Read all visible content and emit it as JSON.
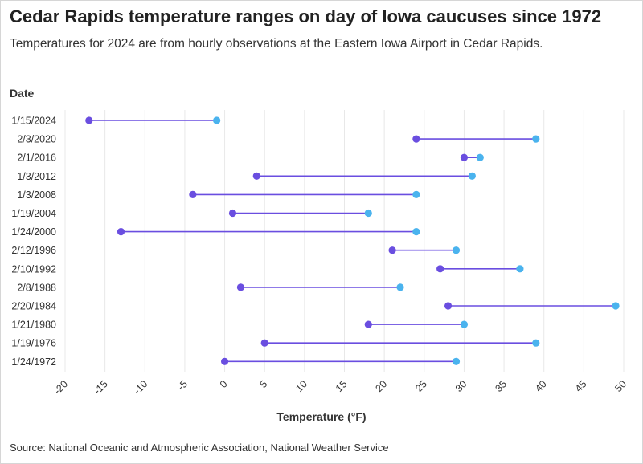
{
  "chart_data": {
    "type": "dumbbell",
    "title": "Cedar Rapids temperature ranges on day of Iowa caucuses since 1972",
    "subtitle": "Temperatures for 2024 are from hourly observations at the Eastern Iowa Airport in Cedar Rapids.",
    "ylabel": "Date",
    "xlabel": "Temperature (°F)",
    "source": "Source: National Oceanic and Atmospheric Association, National Weather Service",
    "xlim": [
      -20,
      50
    ],
    "xticks": [
      -20,
      -15,
      -10,
      -5,
      0,
      5,
      10,
      15,
      20,
      25,
      30,
      35,
      40,
      45,
      50
    ],
    "grid": "vertical",
    "series": [
      {
        "name": "",
        "color": "#6a4ee0"
      },
      {
        "name": "",
        "color": "#4ab3ee"
      }
    ],
    "line_color": "#6a4ee0",
    "rows": [
      {
        "date": "1/15/2024",
        "low": -17,
        "high": -1
      },
      {
        "date": "2/3/2020",
        "low": 24,
        "high": 39
      },
      {
        "date": "2/1/2016",
        "low": 30,
        "high": 32
      },
      {
        "date": "1/3/2012",
        "low": 4,
        "high": 31
      },
      {
        "date": "1/3/2008",
        "low": -4,
        "high": 24
      },
      {
        "date": "1/19/2004",
        "low": 1,
        "high": 18
      },
      {
        "date": "1/24/2000",
        "low": -13,
        "high": 24
      },
      {
        "date": "2/12/1996",
        "low": 21,
        "high": 29
      },
      {
        "date": "2/10/1992",
        "low": 27,
        "high": 37
      },
      {
        "date": "2/8/1988",
        "low": 2,
        "high": 22
      },
      {
        "date": "2/20/1984",
        "low": 28,
        "high": 49
      },
      {
        "date": "1/21/1980",
        "low": 18,
        "high": 30
      },
      {
        "date": "1/19/1976",
        "low": 5,
        "high": 39
      },
      {
        "date": "1/24/1972",
        "low": 0,
        "high": 29
      }
    ]
  }
}
